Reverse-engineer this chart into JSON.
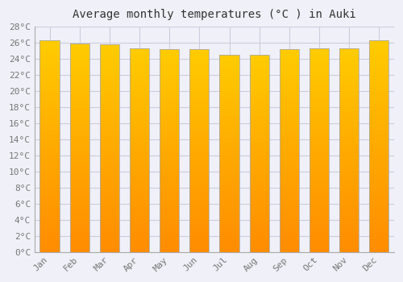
{
  "title": "Average monthly temperatures (°C ) in Auki",
  "months": [
    "Jan",
    "Feb",
    "Mar",
    "Apr",
    "May",
    "Jun",
    "Jul",
    "Aug",
    "Sep",
    "Oct",
    "Nov",
    "Dec"
  ],
  "values": [
    26.3,
    25.9,
    25.8,
    25.3,
    25.2,
    25.2,
    24.5,
    24.5,
    25.2,
    25.3,
    25.3,
    26.3
  ],
  "bar_color_top": "#FFCC00",
  "bar_color_mid": "#FFAA00",
  "bar_color_bottom": "#FF8C00",
  "bar_edge_color": "#AAAAAA",
  "ylim": [
    0,
    28
  ],
  "ytick_step": 2,
  "background_color": "#F0F0F8",
  "plot_bg_color": "#F0F0F8",
  "grid_color": "#CCCCDD",
  "title_fontsize": 10,
  "tick_fontsize": 8,
  "font_family": "monospace",
  "bar_width": 0.65
}
